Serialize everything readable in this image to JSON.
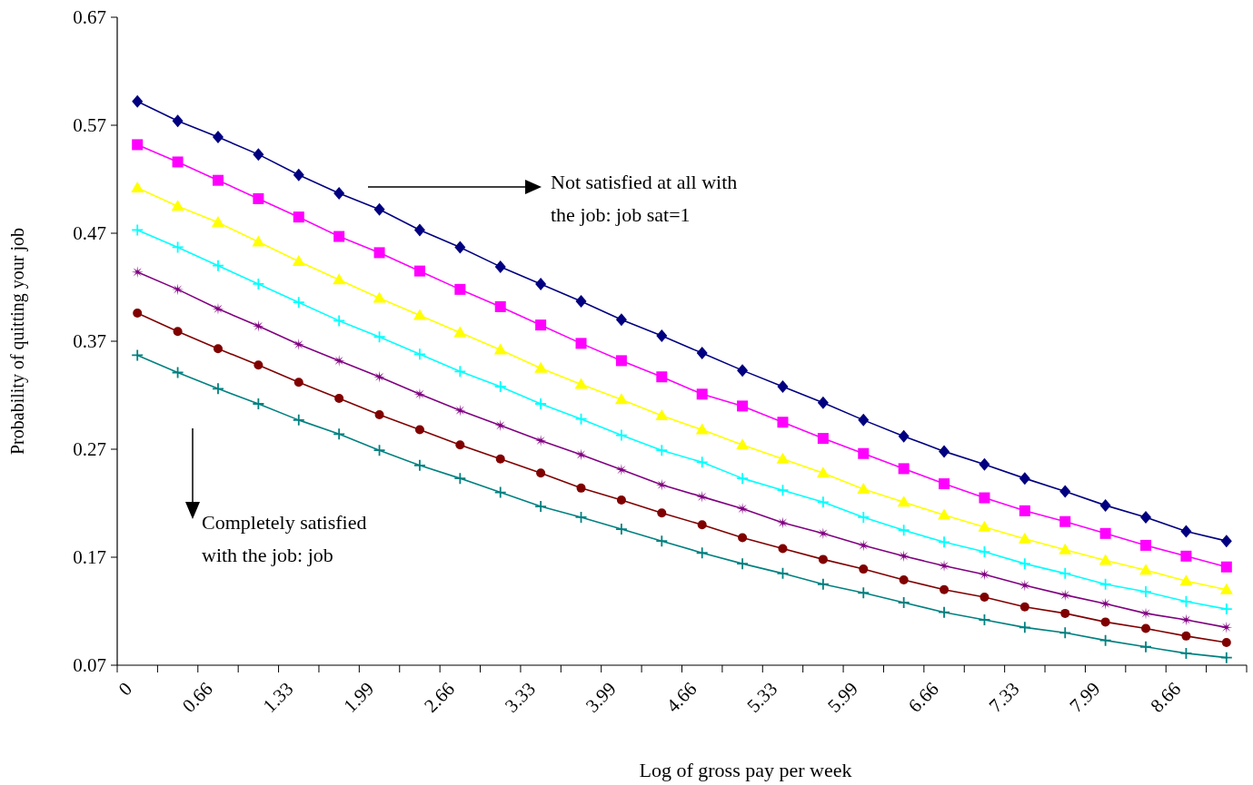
{
  "chart_data": {
    "type": "line",
    "xlabel": "Log of gross pay per week",
    "ylabel": "Probability of quitting your job",
    "categories": [
      "0",
      null,
      "0.66",
      null,
      "1.33",
      null,
      "1.99",
      null,
      "2.66",
      null,
      "3.33",
      null,
      "3.99",
      null,
      "4.66",
      null,
      "5.33",
      null,
      "5.99",
      null,
      "6.66",
      null,
      "7.33",
      null,
      "7.99",
      null,
      "8.66",
      null
    ],
    "series": [
      {
        "color": "#000080",
        "marker": "diamond",
        "values": [
          0.592,
          0.574,
          0.559,
          0.543,
          0.524,
          0.507,
          0.492,
          0.473,
          0.457,
          0.439,
          0.423,
          0.407,
          0.39,
          0.375,
          0.359,
          0.343,
          0.328,
          0.313,
          0.297,
          0.282,
          0.268,
          0.256,
          0.243,
          0.231,
          0.218,
          0.207,
          0.194,
          0.185
        ]
      },
      {
        "color": "#ff00ff",
        "marker": "square",
        "values": [
          0.552,
          0.536,
          0.519,
          0.502,
          0.485,
          0.467,
          0.452,
          0.435,
          0.418,
          0.402,
          0.385,
          0.368,
          0.352,
          0.337,
          0.321,
          0.31,
          0.295,
          0.28,
          0.266,
          0.252,
          0.238,
          0.225,
          0.213,
          0.203,
          0.192,
          0.181,
          0.171,
          0.161
        ]
      },
      {
        "color": "#ffff00",
        "marker": "triangle",
        "values": [
          0.512,
          0.495,
          0.48,
          0.462,
          0.444,
          0.427,
          0.41,
          0.394,
          0.378,
          0.362,
          0.345,
          0.33,
          0.316,
          0.301,
          0.288,
          0.274,
          0.261,
          0.248,
          0.233,
          0.221,
          0.209,
          0.198,
          0.187,
          0.177,
          0.167,
          0.158,
          0.148,
          0.14
        ]
      },
      {
        "color": "#00ffff",
        "marker": "cross",
        "values": [
          0.473,
          0.457,
          0.44,
          0.423,
          0.406,
          0.389,
          0.374,
          0.358,
          0.342,
          0.328,
          0.312,
          0.298,
          0.283,
          0.269,
          0.258,
          0.243,
          0.232,
          0.221,
          0.207,
          0.195,
          0.184,
          0.175,
          0.164,
          0.155,
          0.145,
          0.138,
          0.129,
          0.122
        ]
      },
      {
        "color": "#800080",
        "marker": "star",
        "values": [
          0.434,
          0.418,
          0.4,
          0.384,
          0.367,
          0.352,
          0.337,
          0.321,
          0.306,
          0.292,
          0.278,
          0.265,
          0.251,
          0.237,
          0.226,
          0.215,
          0.202,
          0.192,
          0.181,
          0.171,
          0.162,
          0.154,
          0.144,
          0.135,
          0.127,
          0.118,
          0.112,
          0.105
        ]
      },
      {
        "color": "#800000",
        "marker": "circle",
        "values": [
          0.396,
          0.379,
          0.363,
          0.348,
          0.332,
          0.317,
          0.302,
          0.288,
          0.274,
          0.261,
          0.248,
          0.234,
          0.223,
          0.211,
          0.2,
          0.188,
          0.178,
          0.168,
          0.159,
          0.149,
          0.14,
          0.133,
          0.124,
          0.118,
          0.11,
          0.104,
          0.097,
          0.091
        ]
      },
      {
        "color": "#008080",
        "marker": "cross",
        "values": [
          0.357,
          0.341,
          0.326,
          0.312,
          0.297,
          0.284,
          0.269,
          0.255,
          0.243,
          0.23,
          0.217,
          0.207,
          0.196,
          0.185,
          0.174,
          0.164,
          0.155,
          0.145,
          0.137,
          0.128,
          0.119,
          0.112,
          0.105,
          0.1,
          0.093,
          0.087,
          0.081,
          0.077
        ]
      }
    ],
    "ylim": [
      0.07,
      0.67
    ],
    "yticks": [
      0.07,
      0.17,
      0.27,
      0.37,
      0.47,
      0.57,
      0.67
    ],
    "annotations": [
      "Not satisfied at all with the job: job sat=1",
      "Completely satisfied with the job: job"
    ],
    "grid": false
  }
}
